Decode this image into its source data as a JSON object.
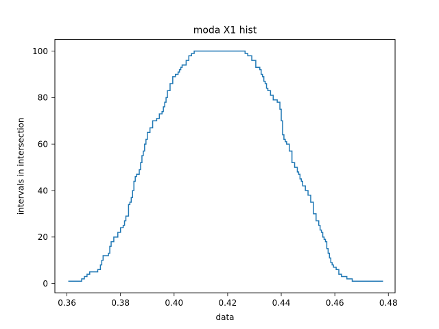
{
  "chart_data": {
    "type": "line",
    "step": true,
    "title": "moda X1 hist",
    "xlabel": "data",
    "ylabel": "intervals in intersection",
    "xlim": [
      0.3555,
      0.4825
    ],
    "ylim": [
      -4,
      105
    ],
    "xticks": [
      0.36,
      0.38,
      0.4,
      0.42,
      0.44,
      0.46,
      0.48
    ],
    "xtick_labels": [
      "0.36",
      "0.38",
      "0.40",
      "0.42",
      "0.44",
      "0.46",
      "0.48"
    ],
    "yticks": [
      0,
      20,
      40,
      60,
      80,
      100
    ],
    "ytick_labels": [
      "0",
      "20",
      "40",
      "60",
      "80",
      "100"
    ],
    "grid": false,
    "legend": "none",
    "color": "#1f77b4",
    "series": [
      {
        "x": [
          0.3605,
          0.3655,
          0.3665,
          0.3675,
          0.3685,
          0.3715,
          0.3725,
          0.373,
          0.3735,
          0.3755,
          0.376,
          0.3765,
          0.3775,
          0.379,
          0.38,
          0.381,
          0.3815,
          0.382,
          0.383,
          0.3835,
          0.384,
          0.3845,
          0.385,
          0.3855,
          0.386,
          0.387,
          0.3875,
          0.388,
          0.3885,
          0.389,
          0.3895,
          0.39,
          0.391,
          0.392,
          0.3935,
          0.3945,
          0.3955,
          0.396,
          0.3965,
          0.397,
          0.3975,
          0.3985,
          0.3995,
          0.4005,
          0.4015,
          0.402,
          0.4025,
          0.403,
          0.4045,
          0.4055,
          0.4065,
          0.4075,
          0.4085,
          0.4095,
          0.4115,
          0.4135,
          0.4165,
          0.4175,
          0.423,
          0.4265,
          0.4275,
          0.429,
          0.4305,
          0.432,
          0.4325,
          0.433,
          0.4335,
          0.434,
          0.4345,
          0.435,
          0.436,
          0.437,
          0.4385,
          0.4395,
          0.44,
          0.4405,
          0.441,
          0.4415,
          0.442,
          0.443,
          0.444,
          0.445,
          0.446,
          0.4465,
          0.447,
          0.4475,
          0.448,
          0.449,
          0.45,
          0.451,
          0.452,
          0.453,
          0.454,
          0.4545,
          0.455,
          0.4555,
          0.456,
          0.4565,
          0.457,
          0.4575,
          0.458,
          0.4585,
          0.459,
          0.4595,
          0.4605,
          0.4615,
          0.4625,
          0.4645,
          0.4665,
          0.469,
          0.47,
          0.471,
          0.472,
          0.478
        ],
        "y": [
          1,
          2,
          3,
          4,
          5,
          6,
          8,
          10,
          12,
          13,
          16,
          18,
          20,
          22,
          24,
          25,
          27,
          29,
          34,
          35,
          37,
          40,
          44,
          46,
          47,
          49,
          52,
          55,
          57,
          60,
          62,
          65,
          67,
          70,
          71,
          73,
          74,
          76,
          78,
          80,
          83,
          86,
          89,
          90,
          91,
          92,
          93,
          94,
          96,
          98,
          99,
          100,
          100,
          100,
          100,
          100,
          100,
          100,
          100,
          99,
          98,
          96,
          93,
          92,
          90,
          89,
          87,
          86,
          84,
          83,
          81,
          79,
          78,
          75,
          70,
          64,
          62,
          61,
          60,
          57,
          52,
          50,
          48,
          47,
          45,
          44,
          42,
          40,
          38,
          35,
          30,
          27,
          25,
          23,
          22,
          20,
          19,
          18,
          15,
          13,
          11,
          9,
          8,
          7,
          6,
          4,
          3,
          2,
          1,
          1,
          1,
          1,
          1,
          1
        ]
      }
    ]
  }
}
